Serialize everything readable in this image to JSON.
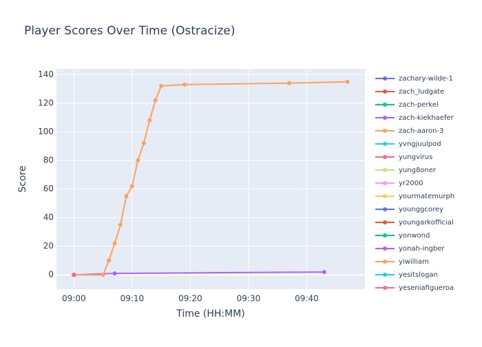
{
  "chart_data": {
    "type": "line",
    "title": "Player Scores Over Time (Ostracize)",
    "x_label": "Time (HH:MM)",
    "y_label": "Score",
    "xlim": [
      "08:57",
      "09:50"
    ],
    "xticks": [
      "09:00",
      "09:10",
      "09:20",
      "09:30",
      "09:40"
    ],
    "ylim": [
      -10,
      144
    ],
    "yticks": [
      0,
      20,
      40,
      60,
      80,
      100,
      120,
      140
    ],
    "grid": true,
    "series": [
      {
        "name": "zachary-wilde-1",
        "color": "#636efa",
        "x": [
          "09:00"
        ],
        "values": [
          0
        ]
      },
      {
        "name": "zach_ludgate",
        "color": "#EF553B",
        "x": [
          "09:00"
        ],
        "values": [
          0
        ]
      },
      {
        "name": "zach-perkel",
        "color": "#00cc96",
        "x": [
          "09:00"
        ],
        "values": [
          0
        ]
      },
      {
        "name": "zach-kiekhaefer",
        "color": "#ab63fa",
        "x": [
          "09:00",
          "09:07",
          "09:43"
        ],
        "values": [
          0,
          1,
          2
        ]
      },
      {
        "name": "zach-aaron-3",
        "color": "#FFA15A",
        "x": [
          "09:00",
          "09:05",
          "09:06",
          "09:07",
          "09:08",
          "09:09",
          "09:10",
          "09:11",
          "09:12",
          "09:13",
          "09:14",
          "09:15",
          "09:19",
          "09:37",
          "09:47"
        ],
        "values": [
          0,
          0,
          10,
          22,
          35,
          55,
          62,
          80,
          92,
          108,
          122,
          132,
          133,
          134,
          135
        ]
      },
      {
        "name": "yvngjuulpod",
        "color": "#19d3f3",
        "x": [
          "09:00"
        ],
        "values": [
          0
        ]
      },
      {
        "name": "yungvirus",
        "color": "#FF6692",
        "x": [
          "09:00"
        ],
        "values": [
          0
        ]
      },
      {
        "name": "yung8oner",
        "color": "#B6E880",
        "x": [
          "09:00"
        ],
        "values": [
          0
        ]
      },
      {
        "name": "yr2000",
        "color": "#FF97FF",
        "x": [
          "09:00"
        ],
        "values": [
          0
        ]
      },
      {
        "name": "yourmatemurph",
        "color": "#FECB52",
        "x": [
          "09:00"
        ],
        "values": [
          0
        ]
      },
      {
        "name": "younggcorey",
        "color": "#636efa",
        "x": [
          "09:00"
        ],
        "values": [
          0
        ]
      },
      {
        "name": "youngarkofficial",
        "color": "#EF553B",
        "x": [
          "09:00"
        ],
        "values": [
          0
        ]
      },
      {
        "name": "yonwond",
        "color": "#00cc96",
        "x": [
          "09:00"
        ],
        "values": [
          0
        ]
      },
      {
        "name": "yonah-ingber",
        "color": "#ab63fa",
        "x": [
          "09:00"
        ],
        "values": [
          0
        ]
      },
      {
        "name": "yiwilliam",
        "color": "#FFA15A",
        "x": [
          "09:00"
        ],
        "values": [
          0
        ]
      },
      {
        "name": "yesitslogan",
        "color": "#19d3f3",
        "x": [
          "09:00"
        ],
        "values": [
          0
        ]
      },
      {
        "name": "yeseniafigueroa",
        "color": "#FF6692",
        "x": [
          "09:00"
        ],
        "values": [
          0
        ]
      }
    ]
  }
}
